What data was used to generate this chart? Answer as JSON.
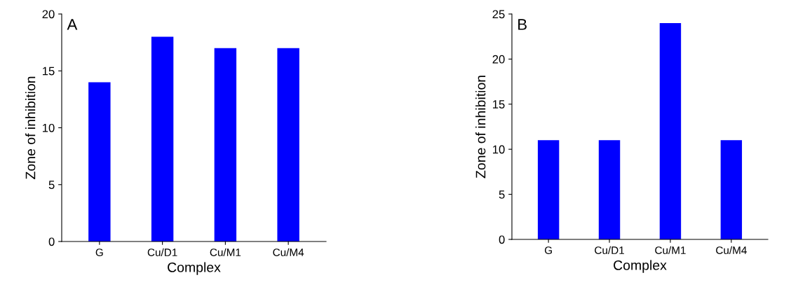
{
  "chart_data": [
    {
      "type": "bar",
      "xlabel": "Complex",
      "ylabel": "Zone of inhibition",
      "annotations": [
        "A"
      ],
      "categories": [
        "G",
        "Cu/D1",
        "Cu/M1",
        "Cu/M4"
      ],
      "values": [
        14,
        18,
        17,
        17
      ],
      "color": "#0000ff",
      "ylim": [
        0,
        20
      ],
      "yticks": [
        0,
        5,
        10,
        15,
        20
      ],
      "grid": false
    },
    {
      "type": "bar",
      "xlabel": "Complex",
      "ylabel": "Zone of inhibition",
      "annotations": [
        "B"
      ],
      "categories": [
        "G",
        "Cu/D1",
        "Cu/M1",
        "Cu/M4"
      ],
      "values": [
        11,
        11,
        24,
        11
      ],
      "color": "#0000ff",
      "ylim": [
        0,
        25
      ],
      "yticks": [
        0,
        5,
        10,
        15,
        20,
        25
      ],
      "grid": false
    }
  ]
}
